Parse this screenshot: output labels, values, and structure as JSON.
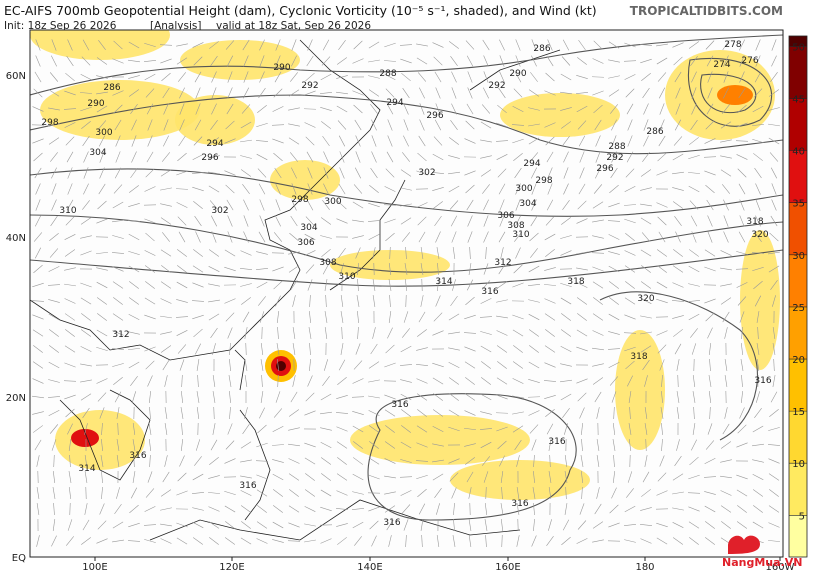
{
  "header": {
    "title": "EC-AIFS 700mb Geopotential Height (dam), Cyclonic Vorticity (10⁻⁵ s⁻¹, shaded), and Wind (kt)",
    "init": "Init: 18z Sep 26 2026",
    "analysis": "[Analysis]",
    "valid": "valid at 18z Sat, Sep 26 2026",
    "site": "TROPICALTIDBITS.COM"
  },
  "map": {
    "lat_labels": [
      "60N",
      "40N",
      "20N",
      "EQ"
    ],
    "lon_labels": [
      "100E",
      "120E",
      "140E",
      "160E",
      "180",
      "160W"
    ],
    "contour_labels": [
      "290",
      "292",
      "288",
      "286",
      "290",
      "292",
      "294",
      "296",
      "286",
      "290",
      "298",
      "300",
      "294",
      "296",
      "304",
      "302",
      "298",
      "300",
      "302",
      "310",
      "304",
      "306",
      "308",
      "310",
      "314",
      "316",
      "312",
      "310",
      "308",
      "306",
      "304",
      "300",
      "298",
      "294",
      "296",
      "292",
      "288",
      "286",
      "278",
      "276",
      "274",
      "318",
      "320",
      "318",
      "316",
      "318",
      "320",
      "312",
      "316",
      "316",
      "316",
      "316",
      "316",
      "314",
      "316"
    ]
  },
  "colorbar": {
    "lim": [
      1,
      51
    ],
    "ticks": [
      5,
      10,
      15,
      20,
      25,
      30,
      35,
      40,
      45,
      50
    ],
    "colors": [
      "#ffffa0",
      "#ffea60",
      "#ffd830",
      "#ffc000",
      "#ffa000",
      "#ff8000",
      "#f05000",
      "#e01010",
      "#b00000",
      "#800000",
      "#500000"
    ]
  },
  "watermark": "NangMua.VN"
}
